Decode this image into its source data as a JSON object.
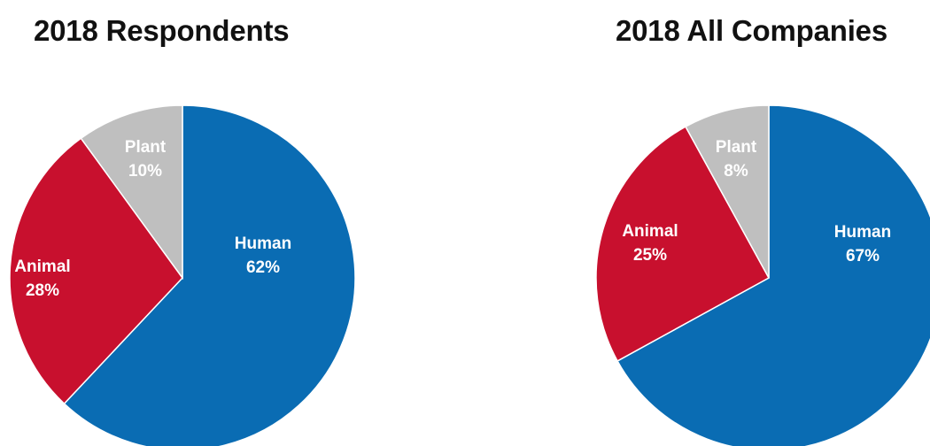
{
  "chart_data": [
    {
      "type": "pie",
      "title": "2018 Respondents",
      "slices": [
        {
          "label": "Human",
          "value": 62,
          "display": "62%",
          "color": "#0a6cb3",
          "text_color": "#ffffff"
        },
        {
          "label": "Animal",
          "value": 28,
          "display": "28%",
          "color": "#c8102e",
          "text_color": "#ffffff"
        },
        {
          "label": "Plant",
          "value": 10,
          "display": "10%",
          "color": "#bfbfbf",
          "text_color": "#ffffff"
        }
      ]
    },
    {
      "type": "pie",
      "title": "2018 All Companies",
      "slices": [
        {
          "label": "Human",
          "value": 67,
          "display": "67%",
          "color": "#0a6cb3",
          "text_color": "#ffffff"
        },
        {
          "label": "Animal",
          "value": 25,
          "display": "25%",
          "color": "#c8102e",
          "text_color": "#ffffff"
        },
        {
          "label": "Plant",
          "value": 8,
          "display": "8%",
          "color": "#bfbfbf",
          "text_color": "#ffffff"
        }
      ]
    }
  ]
}
